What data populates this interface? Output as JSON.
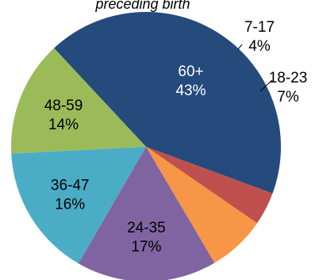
{
  "chart_data": {
    "type": "pie",
    "title": "preceding birth",
    "slices": [
      {
        "label": "60+",
        "value": 43,
        "pct_label": "43%",
        "color": "#254a7c"
      },
      {
        "label": "7-17",
        "value": 4,
        "pct_label": "4%",
        "color": "#c0504d"
      },
      {
        "label": "18-23",
        "value": 7,
        "pct_label": "7%",
        "color": "#f79646"
      },
      {
        "label": "24-35",
        "value": 17,
        "pct_label": "17%",
        "color": "#8064a2"
      },
      {
        "label": "36-47",
        "value": 16,
        "pct_label": "16%",
        "color": "#4bacc6"
      },
      {
        "label": "48-59",
        "value": 14,
        "pct_label": "14%",
        "color": "#9bbb59"
      }
    ]
  }
}
